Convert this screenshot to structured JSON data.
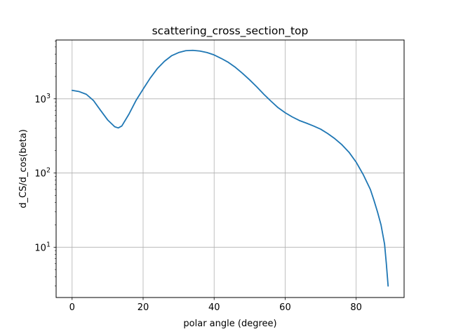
{
  "chart_data": {
    "type": "line",
    "title": "scattering_cross_section_top",
    "xlabel": "polar angle (degree)",
    "ylabel": "d_CS/d_cos(beta)",
    "xlim": [
      -4.5,
      93.5
    ],
    "ylim": [
      2.1,
      6200
    ],
    "yscale": "log",
    "grid": true,
    "x_ticks": [
      0,
      20,
      40,
      60,
      80
    ],
    "x_tick_labels": [
      "0",
      "20",
      "40",
      "60",
      "80"
    ],
    "y_ticks": [
      10,
      100,
      1000
    ],
    "y_tick_labels": [
      {
        "base": "10",
        "exp": "1"
      },
      {
        "base": "10",
        "exp": "2"
      },
      {
        "base": "10",
        "exp": "3"
      }
    ],
    "series": [
      {
        "color": "#1f77b4",
        "x": [
          0,
          2,
          4,
          6,
          8,
          10,
          12,
          13,
          14,
          16,
          18,
          20,
          22,
          24,
          26,
          28,
          30,
          32,
          34,
          36,
          38,
          40,
          42,
          44,
          46,
          48,
          50,
          52,
          54,
          56,
          58,
          60,
          62,
          64,
          66,
          68,
          70,
          72,
          74,
          76,
          78,
          80,
          82,
          84,
          85,
          86,
          87,
          88,
          88.5,
          89
        ],
        "y": [
          1300,
          1250,
          1150,
          950,
          700,
          520,
          420,
          405,
          430,
          620,
          950,
          1350,
          1900,
          2550,
          3200,
          3800,
          4200,
          4450,
          4500,
          4400,
          4200,
          3900,
          3500,
          3100,
          2650,
          2200,
          1800,
          1450,
          1150,
          930,
          760,
          650,
          570,
          510,
          470,
          430,
          390,
          340,
          290,
          240,
          190,
          140,
          95,
          60,
          43,
          30,
          20,
          11,
          6,
          3
        ]
      }
    ]
  }
}
